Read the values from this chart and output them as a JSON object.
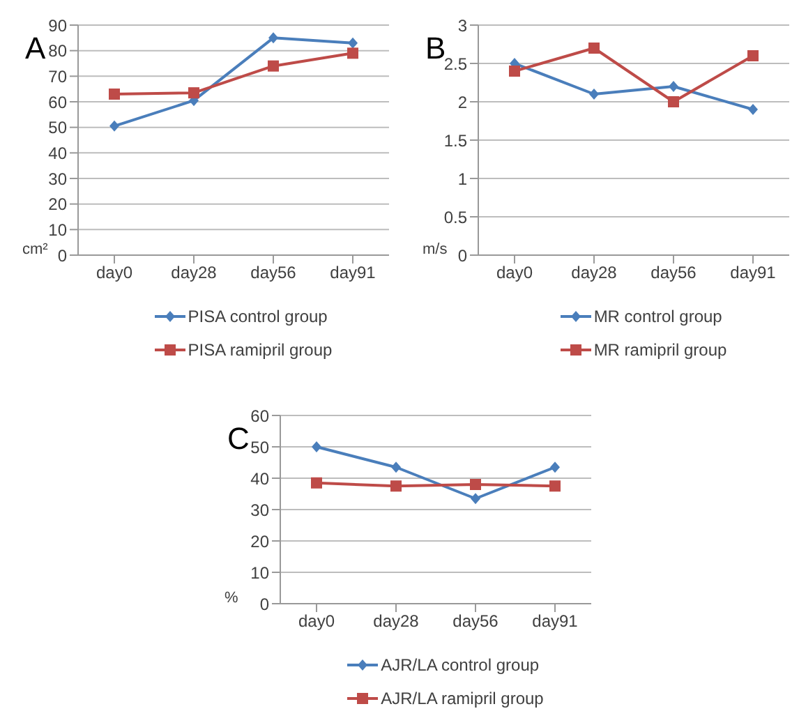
{
  "chart_data": [
    {
      "type": "line",
      "title": "A",
      "ylabel": "cm²",
      "categories": [
        "day0",
        "day28",
        "day56",
        "day91"
      ],
      "ylim": [
        0,
        90
      ],
      "yticks": [
        0,
        10,
        20,
        30,
        40,
        50,
        60,
        70,
        80,
        90
      ],
      "grid": "y",
      "legend": "bottom",
      "series": [
        {
          "name": "PISA control group",
          "color": "#4a7ebb",
          "marker": "diamond",
          "values": [
            50.5,
            60.5,
            85,
            83
          ]
        },
        {
          "name": "PISA ramipril group",
          "color": "#be4b48",
          "marker": "square",
          "values": [
            63,
            63.5,
            74,
            79
          ]
        }
      ]
    },
    {
      "type": "line",
      "title": "B",
      "ylabel": "m/s",
      "categories": [
        "day0",
        "day28",
        "day56",
        "day91"
      ],
      "ylim": [
        0,
        3
      ],
      "yticks": [
        0,
        0.5,
        1,
        1.5,
        2,
        2.5,
        3
      ],
      "grid": "y",
      "legend": "bottom",
      "series": [
        {
          "name": "MR control group",
          "color": "#4a7ebb",
          "marker": "diamond",
          "values": [
            2.5,
            2.1,
            2.2,
            1.9
          ]
        },
        {
          "name": "MR ramipril group",
          "color": "#be4b48",
          "marker": "square",
          "values": [
            2.4,
            2.7,
            2.0,
            2.6
          ]
        }
      ]
    },
    {
      "type": "line",
      "title": "C",
      "ylabel": "%",
      "categories": [
        "day0",
        "day28",
        "day56",
        "day91"
      ],
      "ylim": [
        0,
        60
      ],
      "yticks": [
        0,
        10,
        20,
        30,
        40,
        50,
        60
      ],
      "grid": "y",
      "legend": "bottom",
      "series": [
        {
          "name": "AJR/LA control group",
          "color": "#4a7ebb",
          "marker": "diamond",
          "values": [
            50,
            43.5,
            33.5,
            43.5
          ]
        },
        {
          "name": "AJR/LA ramipril group",
          "color": "#be4b48",
          "marker": "square",
          "values": [
            38.5,
            37.5,
            38,
            37.5
          ]
        }
      ]
    }
  ]
}
